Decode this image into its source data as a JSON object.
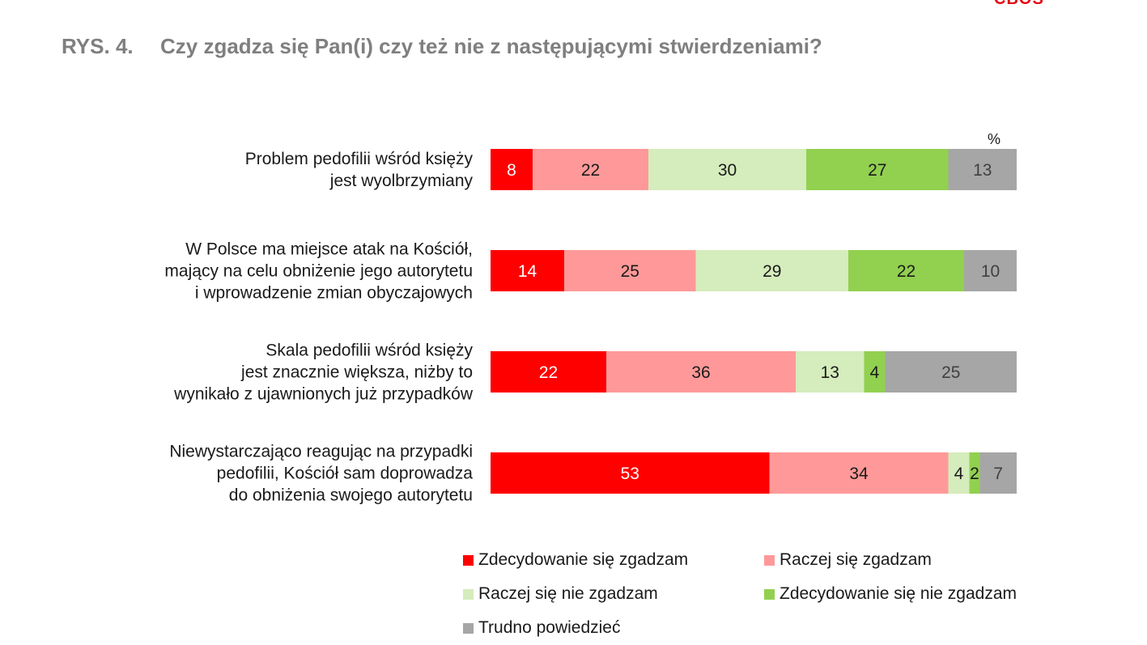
{
  "header": {
    "logo_fragment": "CBOS",
    "figure_number": "RYS. 4.",
    "title": "Czy zgadza się Pan(i) czy też nie z następującymi stwierdzeniami?"
  },
  "chart_data": {
    "type": "bar",
    "orientation": "horizontal",
    "stacked": true,
    "unit": "%",
    "xlim": [
      0,
      100
    ],
    "grid": false,
    "legend_position": "bottom",
    "categories": [
      [
        "Problem pedofilii wśród księży",
        "jest wyolbrzymiany"
      ],
      [
        "W Polsce ma miejsce atak na Kościół,",
        "mający na celu obniżenie jego autorytetu",
        "i wprowadzenie zmian obyczajowych"
      ],
      [
        "Skala pedofilii wśród księży",
        "jest znacznie większa, niżby to",
        "wynikało z ujawnionych już przypadków"
      ],
      [
        "Niewystarczająco reagując na przypadki",
        "pedofilii, Kościół sam doprowadza",
        "do obniżenia swojego autorytetu"
      ]
    ],
    "series": [
      {
        "name": "Zdecydowanie się zgadzam",
        "color": "#ff0000",
        "label_color": "#ffffff",
        "values": [
          8,
          14,
          22,
          53
        ]
      },
      {
        "name": "Raczej się zgadzam",
        "color": "#ff9999",
        "label_color": "#1a1a1a",
        "values": [
          22,
          25,
          36,
          34
        ]
      },
      {
        "name": "Raczej się nie zgadzam",
        "color": "#d5ecbc",
        "label_color": "#1a1a1a",
        "values": [
          30,
          29,
          13,
          4
        ]
      },
      {
        "name": "Zdecydowanie się nie zgadzam",
        "color": "#92d050",
        "label_color": "#1a1a1a",
        "values": [
          27,
          22,
          4,
          2
        ]
      },
      {
        "name": "Trudno powiedzieć",
        "color": "#a6a6a6",
        "label_color": "#404040",
        "values": [
          13,
          10,
          25,
          7
        ]
      }
    ]
  },
  "legend": {
    "items": [
      {
        "label": "Zdecydowanie się zgadzam",
        "color": "#ff0000"
      },
      {
        "label": "Raczej się zgadzam",
        "color": "#ff9999"
      },
      {
        "label": "Raczej się nie zgadzam",
        "color": "#d5ecbc"
      },
      {
        "label": "Zdecydowanie się nie zgadzam",
        "color": "#92d050"
      },
      {
        "label": "Trudno powiedzieć",
        "color": "#a6a6a6"
      }
    ]
  }
}
